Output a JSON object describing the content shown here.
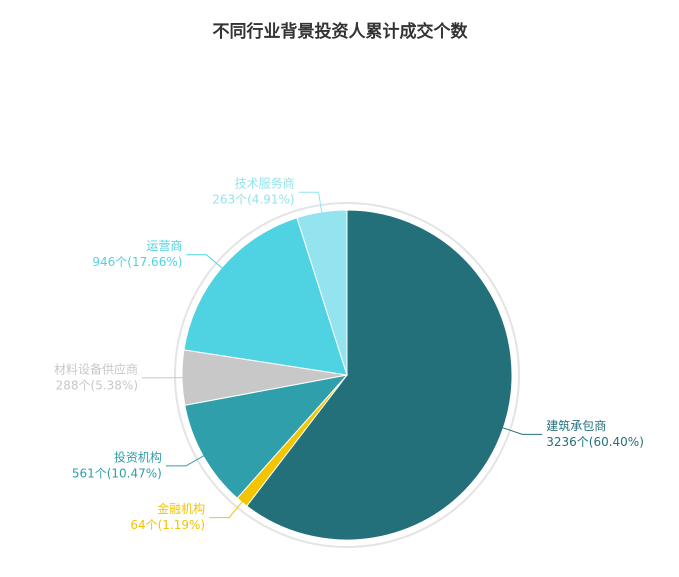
{
  "chart_data": {
    "type": "pie",
    "title": "不同行业背景投资人累计成交个数",
    "categories": [
      "建筑承包商",
      "金融机构",
      "投资机构",
      "材料设备供应商",
      "运营商",
      "技术服务商"
    ],
    "values": [
      3236,
      64,
      561,
      288,
      946,
      263
    ],
    "value_labels": [
      "3236个(60.40%)",
      "64个(1.19%)",
      "561个(10.47%)",
      "288个(5.38%)",
      "946个(17.66%)",
      "263个(4.91%)"
    ],
    "colors": [
      "#23707a",
      "#f2c500",
      "#2e9fab",
      "#c8c8c8",
      "#4fd3e3",
      "#93e4ee"
    ]
  }
}
